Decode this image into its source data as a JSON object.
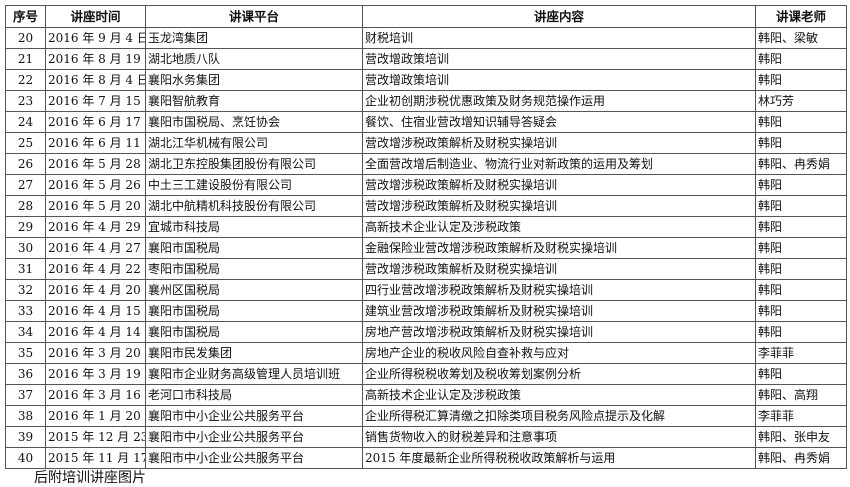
{
  "table": {
    "headers": [
      "序号",
      "讲座时间",
      "讲课平台",
      "讲座内容",
      "讲课老师"
    ],
    "rows": [
      [
        "20",
        "2016 年 9 月 4 日",
        "玉龙湾集团",
        "财税培训",
        "韩阳、梁敏"
      ],
      [
        "21",
        "2016 年 8 月 19 日",
        "湖北地质八队",
        "营改增政策培训",
        "韩阳"
      ],
      [
        "22",
        "2016 年 8 月 4 日",
        "襄阳水务集团",
        "营改增政策培训",
        "韩阳"
      ],
      [
        "23",
        "2016 年 7 月 15 日",
        "襄阳智航教育",
        "企业初创期涉税优惠政策及财务规范操作运用",
        "林巧芳"
      ],
      [
        "24",
        "2016 年 6 月 17 日",
        "襄阳市国税局、烹饪协会",
        "餐饮、住宿业营改增知识辅导答疑会",
        "韩阳"
      ],
      [
        "25",
        "2016 年 6 月 11 日",
        "湖北江华机械有限公司",
        "营改增涉税政策解析及财税实操培训",
        "韩阳"
      ],
      [
        "26",
        "2016 年 5 月 28 日",
        "湖北卫东控股集团股份有限公司",
        "全面营改增后制造业、物流行业对新政策的运用及筹划",
        "韩阳、冉秀娟"
      ],
      [
        "27",
        "2016 年 5 月 26 日",
        "中土三工建设股份有限公司",
        "营改增涉税政策解析及财税实操培训",
        "韩阳"
      ],
      [
        "28",
        "2016 年 5 月 20 日",
        "湖北中航精机科技股份有限公司",
        "营改增涉税政策解析及财税实操培训",
        "韩阳"
      ],
      [
        "29",
        "2016 年 4 月 29 日",
        "宜城市科技局",
        "高新技术企业认定及涉税政策",
        "韩阳"
      ],
      [
        "30",
        "2016 年 4 月 27 日",
        "襄阳市国税局",
        "金融保险业营改增涉税政策解析及财税实操培训",
        "韩阳"
      ],
      [
        "31",
        "2016 年 4 月 22 日",
        "枣阳市国税局",
        "营改增涉税政策解析及财税实操培训",
        "韩阳"
      ],
      [
        "32",
        "2016 年 4 月 20 日",
        "襄州区国税局",
        "四行业营改增涉税政策解析及财税实操培训",
        "韩阳"
      ],
      [
        "33",
        "2016 年 4 月 15 日",
        "襄阳市国税局",
        "建筑业营改增涉税政策解析及财税实操培训",
        "韩阳"
      ],
      [
        "34",
        "2016 年 4 月 14 日",
        "襄阳市国税局",
        "房地产营改增涉税政策解析及财税实操培训",
        "韩阳"
      ],
      [
        "35",
        "2016 年 3 月 20 日",
        "襄阳市民发集团",
        "房地产企业的税收风险自查补救与应对",
        "李菲菲"
      ],
      [
        "36",
        "2016 年 3 月 19 日",
        "襄阳市企业财务高级管理人员培训班",
        "企业所得税税收筹划及税收筹划案例分析",
        "韩阳"
      ],
      [
        "37",
        "2016 年 3 月 16 日",
        "老河口市科技局",
        "高新技术企业认定及涉税政策",
        "韩阳、高翔"
      ],
      [
        "38",
        "2016 年 1 月 20 日",
        "襄阳市中小企业公共服务平台",
        "企业所得税汇算清缴之扣除类项目税务风险点提示及化解",
        "李菲菲"
      ],
      [
        "39",
        "2015 年 12 月 23 日",
        "襄阳市中小企业公共服务平台",
        "销售货物收入的财税差异和注意事项",
        "韩阳、张申友"
      ],
      [
        "40",
        "2015 年 11 月 17 日",
        "襄阳市中小企业公共服务平台",
        "2015 年度最新企业所得税税收政策解析与运用",
        "韩阳、冉秀娟"
      ]
    ]
  },
  "footer": "后附培训讲座图片"
}
